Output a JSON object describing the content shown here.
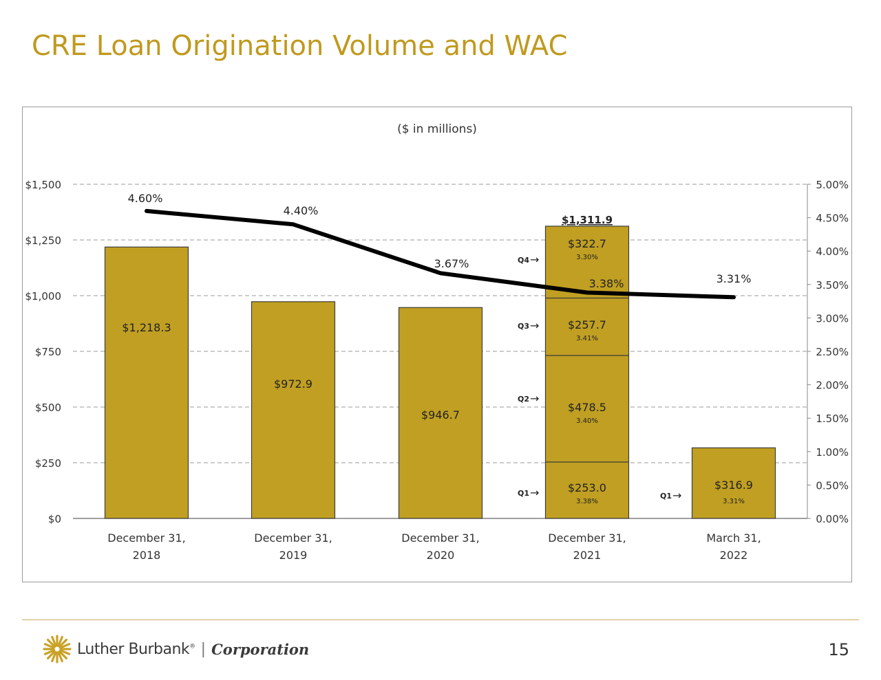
{
  "slide": {
    "title": "CRE Loan Origination Volume and WAC",
    "page_number": "15"
  },
  "logo": {
    "brand": "Luther Burbank",
    "registered": "®",
    "separator": "|",
    "suffix": "Corporation"
  },
  "colors": {
    "bar": "#C09F22",
    "bar_border": "#3d3d3d",
    "line": "#000000",
    "title": "#C09A1E",
    "grid": "#9a9a9a"
  },
  "chart_data": {
    "type": "bar",
    "subtitle": "($ in millions)",
    "categories": [
      [
        "December 31,",
        "2018"
      ],
      [
        "December 31,",
        "2019"
      ],
      [
        "December 31,",
        "2020"
      ],
      [
        "December 31,",
        "2021"
      ],
      [
        "March 31,",
        "2022"
      ]
    ],
    "values": [
      1218.3,
      972.9,
      946.7,
      1311.9,
      316.9
    ],
    "value_labels": [
      "$1,218.3",
      "$972.9",
      "$946.7",
      "$1,311.9",
      "$316.9"
    ],
    "wac": [
      4.6,
      4.4,
      3.67,
      3.38,
      3.31
    ],
    "wac_labels": [
      "4.60%",
      "4.40%",
      "3.67%",
      "3.38%",
      "3.31%"
    ],
    "stacked_2021": [
      {
        "quarter": "Q1",
        "value": 253.0,
        "label": "$253.0",
        "rate": "3.38%"
      },
      {
        "quarter": "Q2",
        "value": 478.5,
        "label": "$478.5",
        "rate": "3.40%"
      },
      {
        "quarter": "Q3",
        "value": 257.7,
        "label": "$257.7",
        "rate": "3.41%"
      },
      {
        "quarter": "Q4",
        "value": 322.7,
        "label": "$322.7",
        "rate": "3.30%"
      }
    ],
    "q1_2022": {
      "quarter": "Q1",
      "rate": "3.31%"
    },
    "arrow": "→",
    "y_left": {
      "ticks": [
        0,
        250,
        500,
        750,
        1000,
        1250,
        1500
      ],
      "tick_labels": [
        "$0",
        "$250",
        "$500",
        "$750",
        "$1,000",
        "$1,250",
        "$1,500"
      ],
      "range": [
        0,
        1500
      ]
    },
    "y_right": {
      "ticks": [
        0,
        0.5,
        1.0,
        1.5,
        2.0,
        2.5,
        3.0,
        3.5,
        4.0,
        4.5,
        5.0
      ],
      "tick_labels": [
        "0.00%",
        "0.50%",
        "1.00%",
        "1.50%",
        "2.00%",
        "2.50%",
        "3.00%",
        "3.50%",
        "4.00%",
        "4.50%",
        "5.00%"
      ],
      "range": [
        0,
        5
      ]
    },
    "grid": "dashed-horizontal"
  }
}
